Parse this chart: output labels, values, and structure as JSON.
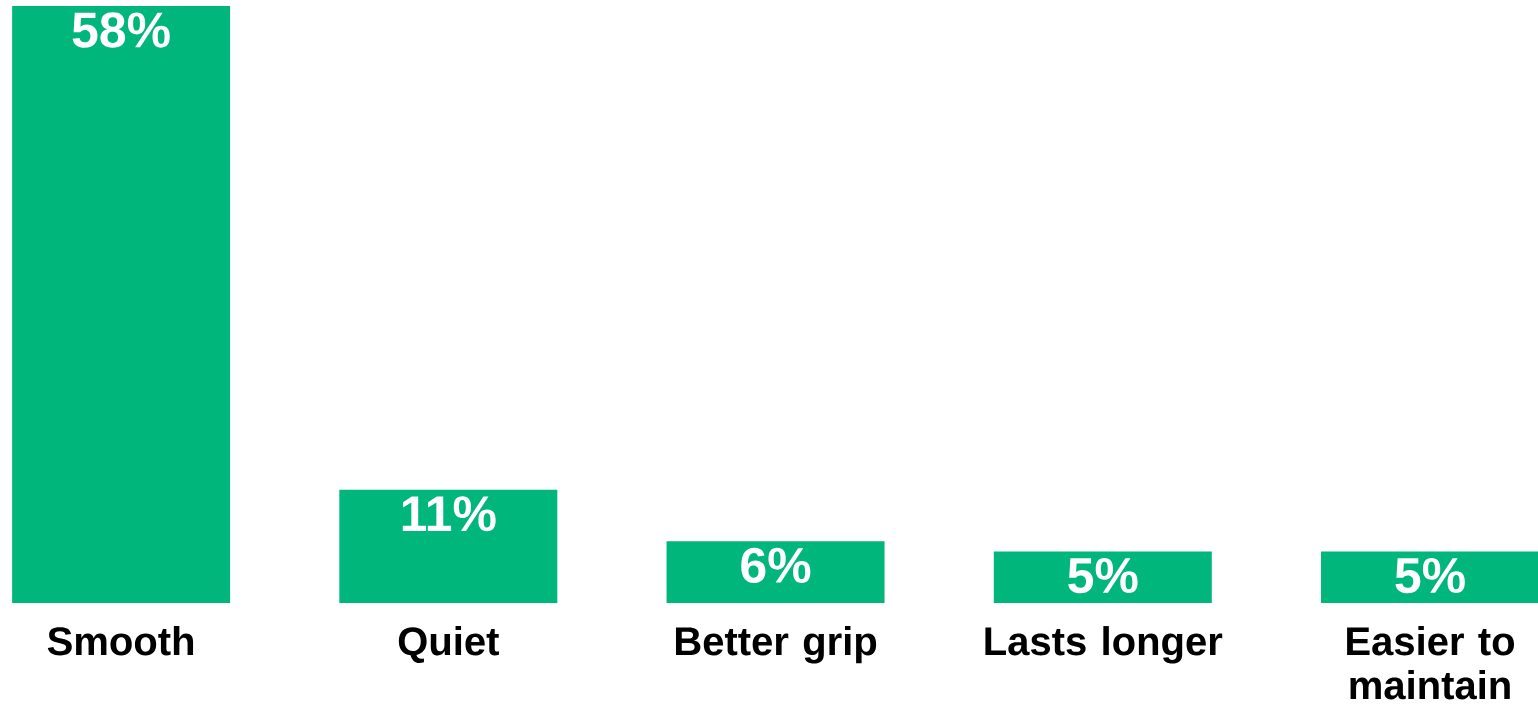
{
  "chart_data": {
    "type": "bar",
    "categories": [
      "Smooth",
      "Quiet",
      "Better grip",
      "Lasts longer",
      "Easier to maintain"
    ],
    "values": [
      58,
      11,
      6,
      5,
      5
    ],
    "value_labels": [
      "58%",
      "11%",
      "6%",
      "5%",
      "5%"
    ],
    "color": "#00b67a"
  }
}
